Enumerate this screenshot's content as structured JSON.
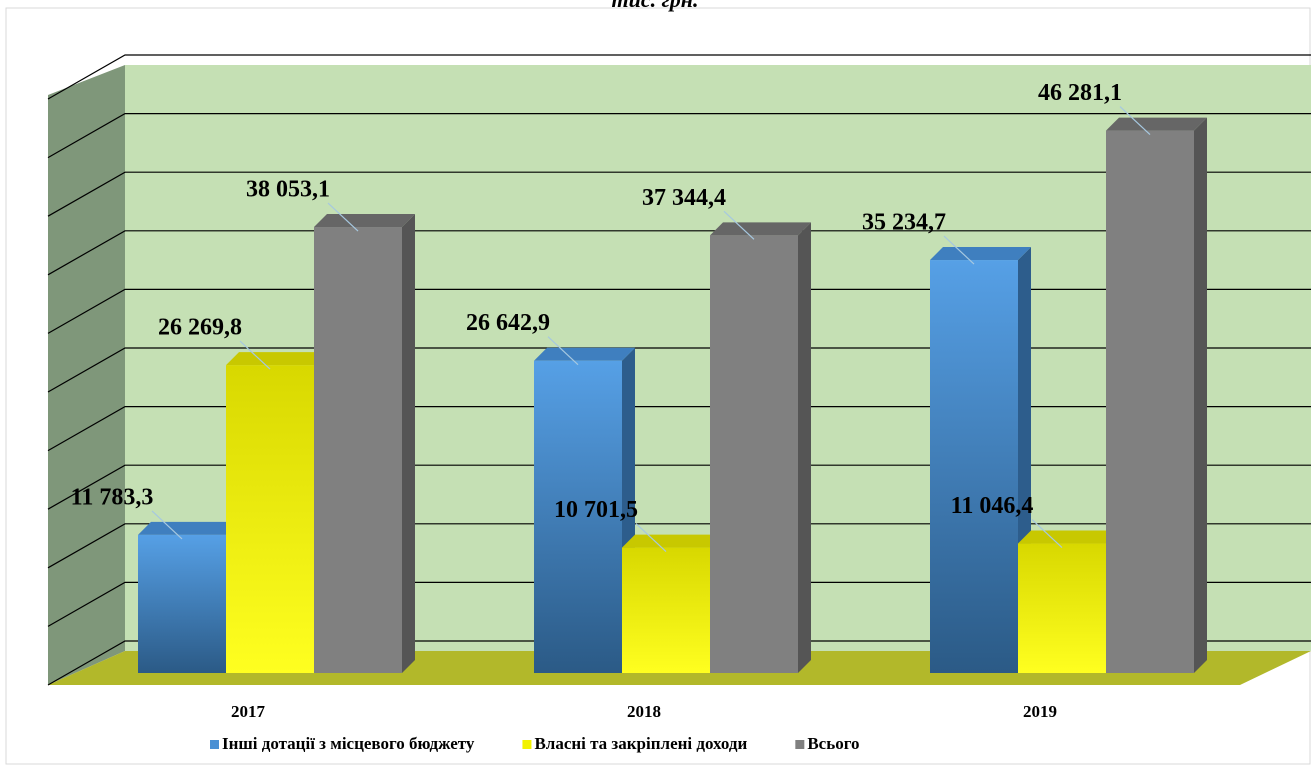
{
  "chart_data": {
    "type": "bar3d",
    "title": "тис. грн.",
    "categories": [
      "2017",
      "2018",
      "2019"
    ],
    "series": [
      {
        "name": "Інші дотації з місцевого бюджету",
        "color": "#4a90d4",
        "values": [
          11783.3,
          26642.9,
          35234.7
        ],
        "value_labels": [
          "11 783,3",
          "26 642,9",
          "35 234,7"
        ]
      },
      {
        "name": "Власні та закріплені доходи",
        "color": "#f2f200",
        "values": [
          26269.8,
          10701.5,
          11046.4
        ],
        "value_labels": [
          "26 269,8",
          "10 701,5",
          "11 046,4"
        ]
      },
      {
        "name": "Всього",
        "color": "#808080",
        "values": [
          38053.1,
          37344.4,
          46281.1
        ],
        "value_labels": [
          "38 053,1",
          "37 344,4",
          "46 281,1"
        ]
      }
    ],
    "ylim": [
      0,
      50000
    ],
    "yticks": [
      0,
      5000,
      10000,
      15000,
      20000,
      25000,
      30000,
      35000,
      40000,
      45000,
      50000
    ],
    "grid": true,
    "legend": "bottom"
  }
}
